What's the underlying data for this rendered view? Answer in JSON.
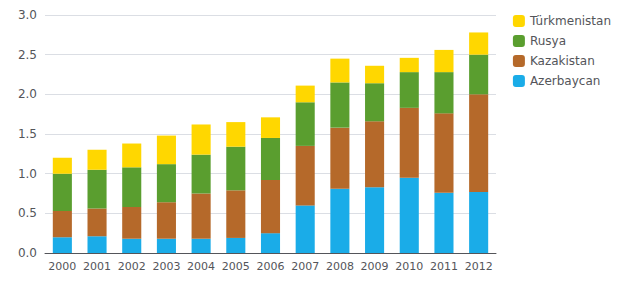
{
  "chart_data": {
    "type": "bar",
    "stacked": true,
    "categories": [
      "2000",
      "2001",
      "2002",
      "2003",
      "2004",
      "2005",
      "2006",
      "2007",
      "2008",
      "2009",
      "2010",
      "2011",
      "2012"
    ],
    "series": [
      {
        "name": "Azerbaycan",
        "color": "#1AACE8",
        "values": [
          0.2,
          0.21,
          0.18,
          0.18,
          0.18,
          0.19,
          0.25,
          0.6,
          0.81,
          0.83,
          0.95,
          0.76,
          0.77
        ]
      },
      {
        "name": "Kazakistan",
        "color": "#B5692A",
        "values": [
          0.33,
          0.35,
          0.4,
          0.46,
          0.57,
          0.6,
          0.67,
          0.75,
          0.77,
          0.83,
          0.88,
          1.0,
          1.23
        ]
      },
      {
        "name": "Rusya",
        "color": "#5A9E2F",
        "values": [
          0.47,
          0.49,
          0.5,
          0.48,
          0.49,
          0.55,
          0.53,
          0.55,
          0.57,
          0.48,
          0.45,
          0.52,
          0.5
        ]
      },
      {
        "name": "Türkmenistan",
        "color": "#FFD700",
        "values": [
          0.2,
          0.25,
          0.3,
          0.36,
          0.38,
          0.31,
          0.26,
          0.21,
          0.3,
          0.22,
          0.18,
          0.28,
          0.28
        ]
      }
    ],
    "ylim": [
      0,
      3.0
    ],
    "yticks": [
      {
        "value": 0.0,
        "label": "0.0"
      },
      0.5,
      {
        "value": 1.0,
        "label": "1.0"
      },
      1.5,
      {
        "value": 2.0,
        "label": "2.0"
      },
      2.5,
      {
        "value": 3.0,
        "label": "3.0"
      }
    ],
    "grid": true,
    "legend": "right"
  }
}
